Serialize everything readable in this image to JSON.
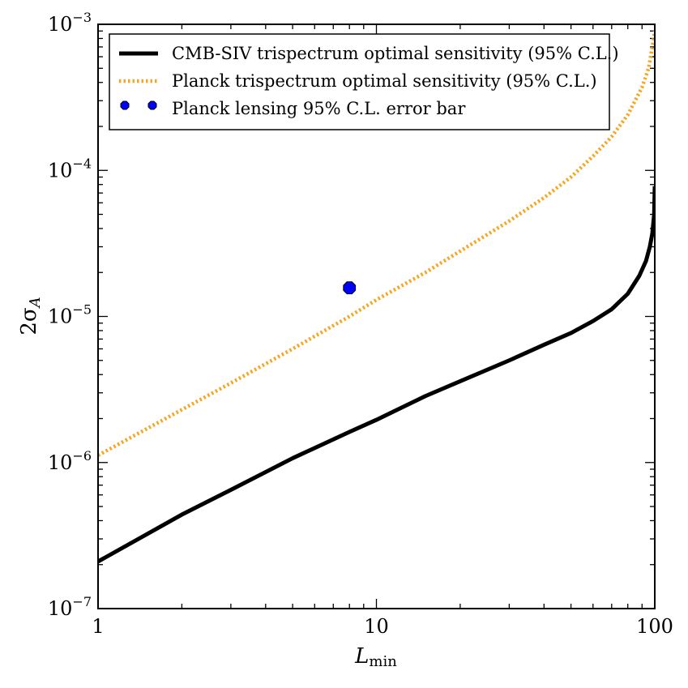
{
  "chart_data": {
    "type": "line",
    "title": "",
    "xscale": "log",
    "yscale": "log",
    "xlim": [
      1,
      100
    ],
    "ylim": [
      1e-07,
      0.001
    ],
    "xlabel": {
      "main": "L",
      "sub": "min"
    },
    "ylabel": {
      "prefix": "2σ",
      "sub": "A"
    },
    "xticks": [
      {
        "value": 1,
        "label": "1"
      },
      {
        "value": 10,
        "label": "10"
      },
      {
        "value": 100,
        "label": "100"
      }
    ],
    "yticks": [
      {
        "value": 1e-07,
        "base": "10",
        "exp": "−7"
      },
      {
        "value": 1e-06,
        "base": "10",
        "exp": "−6"
      },
      {
        "value": 1e-05,
        "base": "10",
        "exp": "−5"
      },
      {
        "value": 0.0001,
        "base": "10",
        "exp": "−4"
      },
      {
        "value": 0.001,
        "base": "10",
        "exp": "−3"
      }
    ],
    "legend_position": "top-left",
    "series": [
      {
        "name": "CMB-SIV trispectrum optimal sensitivity (95% C.L.)",
        "style": "solid",
        "color": "#000000",
        "x": [
          1,
          2,
          3,
          5,
          8,
          10,
          15,
          20,
          30,
          40,
          50,
          60,
          70,
          80,
          88,
          93,
          96,
          98,
          99.5,
          100
        ],
        "y": [
          2.1e-07,
          4.4e-07,
          6.5e-07,
          1.07e-06,
          1.62e-06,
          1.96e-06,
          2.85e-06,
          3.6e-06,
          5e-06,
          6.4e-06,
          7.7e-06,
          9.3e-06,
          1.12e-05,
          1.43e-05,
          1.9e-05,
          2.4e-05,
          3e-05,
          3.7e-05,
          5e-05,
          7.8e-05
        ]
      },
      {
        "name": "Planck trispectrum optimal sensitivity (95% C.L.)",
        "style": "dotted",
        "color": "#f5a623",
        "x": [
          1,
          2,
          3,
          5,
          8,
          10,
          15,
          20,
          30,
          40,
          50,
          60,
          70,
          80,
          90,
          95,
          98,
          100
        ],
        "y": [
          1.12e-06,
          2.3e-06,
          3.5e-06,
          6e-06,
          1e-05,
          1.3e-05,
          2e-05,
          2.8e-05,
          4.5e-05,
          6.5e-05,
          9e-05,
          0.000125,
          0.00017,
          0.00024,
          0.00037,
          0.0005,
          0.0007,
          0.0009
        ]
      }
    ],
    "points": [
      {
        "name": "Planck lensing 95% C.L. error bar",
        "marker": "octagon",
        "color": "#0000ff",
        "x": 8,
        "y": 1.57e-05
      }
    ]
  }
}
